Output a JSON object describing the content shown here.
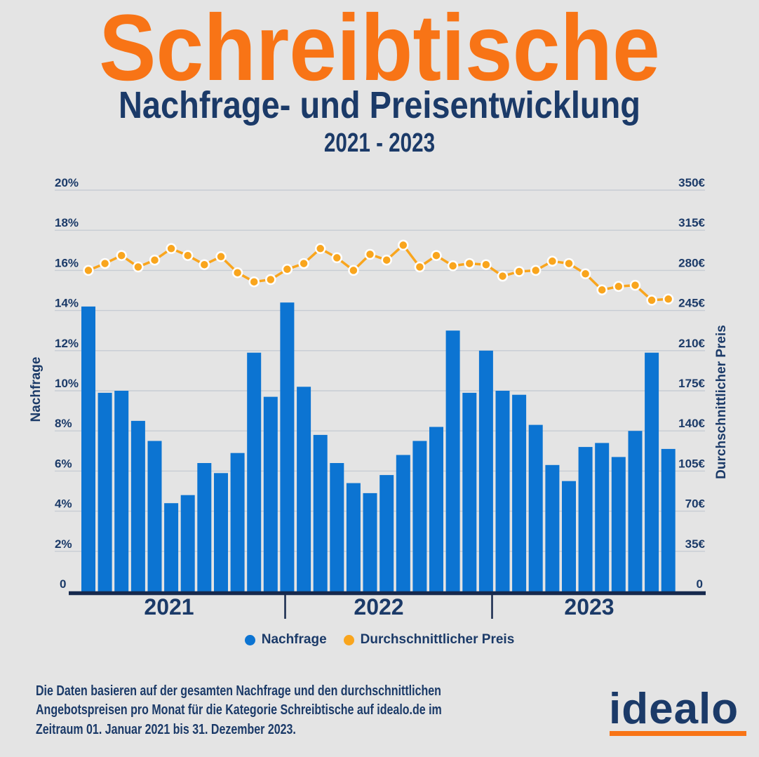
{
  "header": {
    "title": "Schreibtische",
    "subtitle": "Nachfrage- und Preisentwicklung",
    "period": "2021 - 2023"
  },
  "colors": {
    "background": "#e4e4e4",
    "accent_orange": "#f87416",
    "navy_text": "#1b3a68",
    "axis_navy": "#16294d",
    "bar_blue": "#0c74d2",
    "line_amber": "#f9a51d",
    "gridline": "#c7ccd3"
  },
  "chart_data": {
    "type": "combo",
    "title": "Schreibtische Nachfrage- und Preisentwicklung 2021 - 2023",
    "years": [
      "2021",
      "2022",
      "2023"
    ],
    "x_unit": "Monat",
    "grid": true,
    "legend_position": "bottom",
    "series": [
      {
        "name": "Nachfrage",
        "type": "bar",
        "axis": "left",
        "unit": "%",
        "color": "#0c74d2",
        "values": [
          14.2,
          9.9,
          10.0,
          8.5,
          7.5,
          4.4,
          4.8,
          6.4,
          5.9,
          6.9,
          11.9,
          9.7,
          14.4,
          10.2,
          7.8,
          6.4,
          5.4,
          4.9,
          5.8,
          6.8,
          7.5,
          8.2,
          13.0,
          9.9,
          12.0,
          10.0,
          9.8,
          8.3,
          6.3,
          5.5,
          7.2,
          7.4,
          6.7,
          8.0,
          11.9,
          7.1
        ]
      },
      {
        "name": "Durchschnittlicher Preis",
        "type": "line",
        "axis": "right",
        "unit": "€",
        "color": "#f9a51d",
        "values": [
          280,
          286,
          293,
          283,
          289,
          299,
          293,
          285,
          292,
          278,
          270,
          272,
          281,
          286,
          299,
          291,
          280,
          294,
          289,
          302,
          283,
          293,
          284,
          286,
          285,
          275,
          279,
          280,
          288,
          286,
          277,
          263,
          266,
          267,
          254,
          255
        ]
      }
    ],
    "left_axis": {
      "title": "Nachfrage",
      "min": 0,
      "max": 20,
      "step": 2,
      "tick_labels": [
        "20%",
        "18%",
        "16%",
        "14%",
        "12%",
        "10%",
        "8%",
        "6%",
        "4%",
        "2%",
        "0"
      ]
    },
    "right_axis": {
      "title": "Durchschnittlicher Preis",
      "min": 0,
      "max": 350,
      "step": 35,
      "tick_labels": [
        "350€",
        "315€",
        "280€",
        "245€",
        "210€",
        "175€",
        "140€",
        "105€",
        "70€",
        "35€",
        "0"
      ]
    }
  },
  "footer": {
    "lines": [
      "Die Daten basieren auf der gesamten Nachfrage und den durchschnittlichen",
      "Angebotspreisen pro Monat für die Kategorie Schreibtische auf idealo.de im",
      "Zeitraum 01. Januar 2021 bis 31. Dezember 2023."
    ],
    "logo_text": "idealo"
  }
}
